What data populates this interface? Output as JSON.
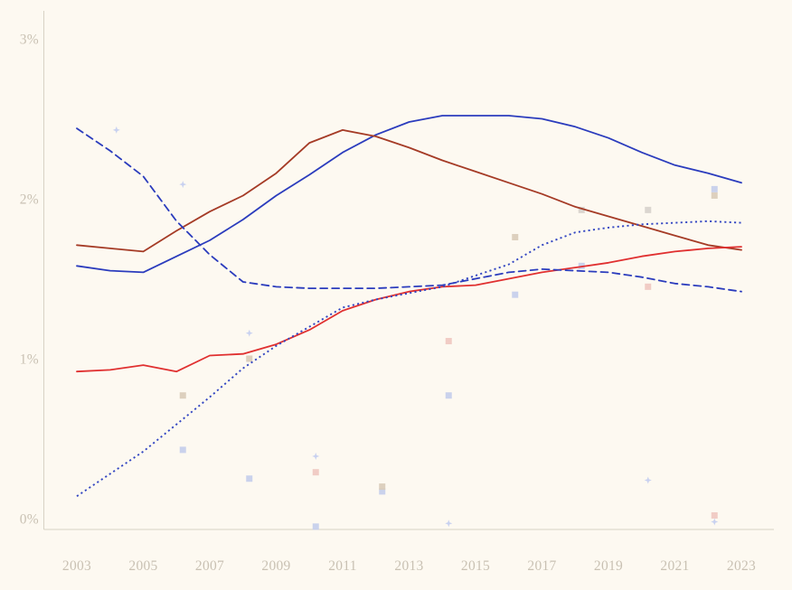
{
  "page": {
    "background_color": "#fdf9f1",
    "axis_color": "#d8d2c5",
    "tick_label_color": "#c9c1b3"
  },
  "chart_data": {
    "type": "line",
    "title": "",
    "xlabel": "",
    "ylabel": "",
    "grid": false,
    "legend_position": "none",
    "x_range": [
      2003,
      2023
    ],
    "ylim": [
      0,
      3.2
    ],
    "x": [
      2003,
      2004,
      2005,
      2006,
      2007,
      2008,
      2009,
      2010,
      2011,
      2012,
      2013,
      2014,
      2015,
      2016,
      2017,
      2018,
      2019,
      2020,
      2021,
      2022,
      2023
    ],
    "x_ticks": [
      {
        "label": "2003",
        "value": 2003
      },
      {
        "label": "2005",
        "value": 2005
      },
      {
        "label": "2007",
        "value": 2007
      },
      {
        "label": "2009",
        "value": 2009
      },
      {
        "label": "2011",
        "value": 2011
      },
      {
        "label": "2013",
        "value": 2013
      },
      {
        "label": "2015",
        "value": 2015
      },
      {
        "label": "2017",
        "value": 2017
      },
      {
        "label": "2019",
        "value": 2019
      },
      {
        "label": "2021",
        "value": 2021
      },
      {
        "label": "2023",
        "value": 2023
      }
    ],
    "y_ticks": [
      {
        "label": "0%",
        "value": 0
      },
      {
        "label": "1%",
        "value": 1
      },
      {
        "label": "2%",
        "value": 2
      },
      {
        "label": "3%",
        "value": 3
      }
    ],
    "series": [
      {
        "name": "blue-solid-line",
        "style": "solid",
        "color": "#2b3cbd",
        "width": 1.8,
        "values": [
          1.58,
          1.55,
          1.54,
          1.64,
          1.74,
          1.87,
          2.02,
          2.15,
          2.29,
          2.4,
          2.48,
          2.52,
          2.52,
          2.52,
          2.5,
          2.45,
          2.38,
          2.29,
          2.21,
          2.16,
          2.1
        ]
      },
      {
        "name": "brown-solid-line",
        "style": "solid",
        "color": "#a53b26",
        "width": 1.8,
        "values": [
          1.71,
          1.69,
          1.67,
          1.8,
          1.92,
          2.02,
          2.16,
          2.35,
          2.43,
          2.39,
          2.32,
          2.24,
          2.17,
          2.1,
          2.03,
          1.95,
          1.89,
          1.83,
          1.77,
          1.71,
          1.68
        ]
      },
      {
        "name": "red-solid-line",
        "style": "solid",
        "color": "#e03030",
        "width": 1.8,
        "values": [
          0.92,
          0.93,
          0.96,
          0.92,
          1.02,
          1.03,
          1.09,
          1.18,
          1.3,
          1.37,
          1.42,
          1.45,
          1.46,
          1.5,
          1.54,
          1.57,
          1.6,
          1.64,
          1.67,
          1.69,
          1.7
        ]
      },
      {
        "name": "blue-dashed-line",
        "style": "dashed",
        "color": "#2b3cbd",
        "width": 1.8,
        "values": [
          2.44,
          2.3,
          2.14,
          1.86,
          1.65,
          1.48,
          1.45,
          1.44,
          1.44,
          1.44,
          1.45,
          1.46,
          1.5,
          1.54,
          1.56,
          1.55,
          1.54,
          1.51,
          1.47,
          1.45,
          1.42
        ]
      },
      {
        "name": "blue-dotted-line",
        "style": "dotted",
        "color": "#3346c2",
        "width": 1.9,
        "values": [
          0.14,
          0.28,
          0.42,
          0.59,
          0.76,
          0.94,
          1.08,
          1.2,
          1.32,
          1.37,
          1.41,
          1.45,
          1.52,
          1.59,
          1.71,
          1.79,
          1.82,
          1.84,
          1.85,
          1.86,
          1.85
        ]
      }
    ],
    "scatter": [
      {
        "name": "faint-blue-squares",
        "shape": "square",
        "color": "#c4cdeb",
        "points": [
          [
            2006,
            0.43
          ],
          [
            2008,
            0.25
          ],
          [
            2010,
            -0.05
          ],
          [
            2012,
            0.17
          ],
          [
            2014,
            0.77
          ],
          [
            2016,
            1.4
          ],
          [
            2018,
            1.58
          ],
          [
            2022,
            2.06
          ]
        ]
      },
      {
        "name": "faint-tan-squares",
        "shape": "square",
        "color": "#d9cbb8",
        "points": [
          [
            2006,
            0.77
          ],
          [
            2008,
            1.0
          ],
          [
            2012,
            0.2
          ],
          [
            2016,
            1.76
          ],
          [
            2022,
            2.02
          ]
        ]
      },
      {
        "name": "faint-gray-squares",
        "shape": "square",
        "color": "#d7d2cc",
        "points": [
          [
            2018,
            1.93
          ],
          [
            2020,
            1.93
          ]
        ]
      },
      {
        "name": "faint-pink-squares",
        "shape": "square",
        "color": "#f0c6c0",
        "points": [
          [
            2010,
            0.29
          ],
          [
            2014,
            1.11
          ],
          [
            2020,
            1.45
          ],
          [
            2022,
            0.02
          ]
        ]
      },
      {
        "name": "faint-blue-stars",
        "shape": "star",
        "color": "#c5cfef",
        "points": [
          [
            2004,
            2.43
          ],
          [
            2006,
            2.09
          ],
          [
            2008,
            1.16
          ],
          [
            2010,
            0.39
          ],
          [
            2014,
            -0.03
          ],
          [
            2020,
            0.24
          ],
          [
            2022,
            -0.02
          ]
        ]
      }
    ]
  }
}
